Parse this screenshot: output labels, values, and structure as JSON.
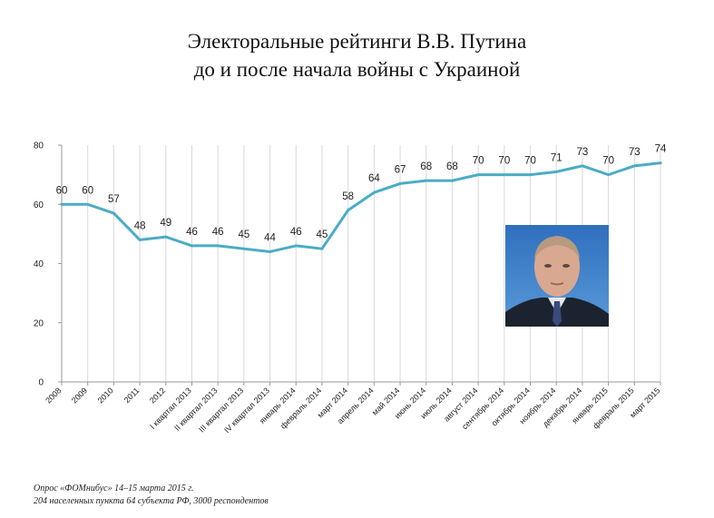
{
  "title_line1": "Электоральные рейтинги В.В. Путина",
  "title_line2": "до и после начала войны с Украиной",
  "footnote_line1": "Опрос «ФОМнибус» 14–15 марта 2015 г.",
  "footnote_line2": "204 населенных пункта 64 субъекта РФ, 3000 респондентов",
  "photo_icon": "portrait-photo",
  "chart_data": {
    "type": "line",
    "categories": [
      "2008",
      "2009",
      "2010",
      "2011",
      "2012",
      "I квартал 2013",
      "II квартал 2013",
      "III квартал 2013",
      "IV квартал 2013",
      "январь 2014",
      "февраль 2014",
      "март 2014",
      "апрель 2014",
      "май 2014",
      "июнь 2014",
      "июль 2014",
      "август 2014",
      "сентябрь 2014",
      "октябрь 2014",
      "ноябрь 2014",
      "декабрь 2014",
      "январь 2015",
      "февраль 2015",
      "март 2015"
    ],
    "values": [
      60,
      60,
      57,
      48,
      49,
      46,
      46,
      45,
      44,
      46,
      45,
      58,
      64,
      67,
      68,
      68,
      70,
      70,
      70,
      71,
      73,
      70,
      73,
      74
    ],
    "ylim": [
      0,
      80
    ],
    "yticks": [
      0,
      20,
      40,
      60,
      80
    ],
    "grid": true,
    "line_color": "#4bacc6",
    "grid_color": "#d9d9d9"
  }
}
